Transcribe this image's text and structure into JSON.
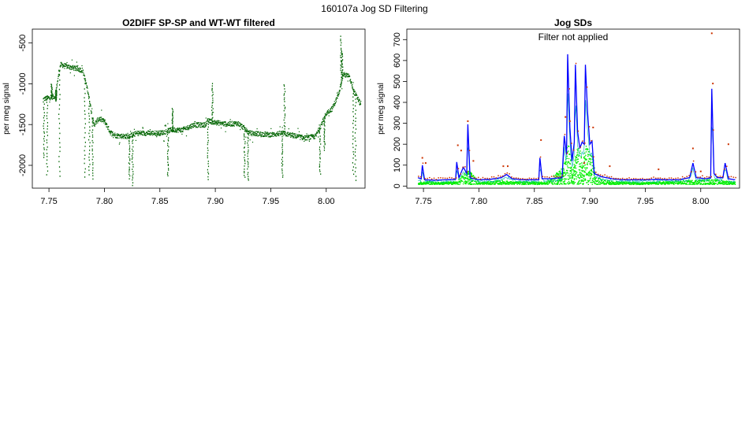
{
  "page": {
    "title": "160107a   Jog SD Filtering"
  },
  "colors": {
    "left_series": "#006400",
    "right_blue": "#0000ff",
    "right_green": "#00ee00",
    "right_red": "#cc3300",
    "right_cyan": "#00b0b0"
  },
  "chart_data": [
    {
      "type": "scatter",
      "title": "O2DIFF SP-SP and WT-WT filtered",
      "xlabel": "",
      "ylabel": "per meg signal",
      "xlim": [
        7.735,
        8.035
      ],
      "ylim": [
        -2280,
        -330
      ],
      "x_ticks": [
        7.75,
        7.8,
        7.85,
        7.9,
        7.95,
        8.0
      ],
      "x_tick_labels": [
        "7.75",
        "7.80",
        "7.85",
        "7.90",
        "7.95",
        "8.00"
      ],
      "y_ticks": [
        -2000,
        -1500,
        -1000,
        -500
      ],
      "y_tick_labels": [
        "-2000",
        "-1500",
        "-1000",
        "-500"
      ],
      "grid": false,
      "baseline": [
        [
          7.745,
          -1180
        ],
        [
          7.755,
          -1150
        ],
        [
          7.76,
          -760
        ],
        [
          7.78,
          -830
        ],
        [
          7.785,
          -1100
        ],
        [
          7.79,
          -1500
        ],
        [
          7.795,
          -1420
        ],
        [
          7.8,
          -1460
        ],
        [
          7.805,
          -1590
        ],
        [
          7.81,
          -1630
        ],
        [
          7.82,
          -1640
        ],
        [
          7.825,
          -1620
        ],
        [
          7.83,
          -1600
        ],
        [
          7.85,
          -1600
        ],
        [
          7.855,
          -1580
        ],
        [
          7.86,
          -1560
        ],
        [
          7.87,
          -1560
        ],
        [
          7.88,
          -1500
        ],
        [
          7.89,
          -1500
        ],
        [
          7.893,
          -1450
        ],
        [
          7.9,
          -1470
        ],
        [
          7.91,
          -1490
        ],
        [
          7.92,
          -1480
        ],
        [
          7.925,
          -1530
        ],
        [
          7.93,
          -1600
        ],
        [
          7.95,
          -1620
        ],
        [
          7.96,
          -1600
        ],
        [
          7.97,
          -1630
        ],
        [
          7.98,
          -1660
        ],
        [
          7.99,
          -1640
        ],
        [
          7.995,
          -1500
        ],
        [
          8.0,
          -1350
        ],
        [
          8.005,
          -1300
        ],
        [
          8.01,
          -1150
        ],
        [
          8.015,
          -880
        ],
        [
          8.02,
          -900
        ],
        [
          8.025,
          -1100
        ],
        [
          8.03,
          -1230
        ]
      ],
      "excursions": [
        [
          7.745,
          -1900
        ],
        [
          7.748,
          -2100
        ],
        [
          7.752,
          -1000
        ],
        [
          7.756,
          -1200
        ],
        [
          7.759,
          -2120
        ],
        [
          7.782,
          -2140
        ],
        [
          7.786,
          -2100
        ],
        [
          7.789,
          -2160
        ],
        [
          7.822,
          -2150
        ],
        [
          7.825,
          -2230
        ],
        [
          7.857,
          -2130
        ],
        [
          7.861,
          -1300
        ],
        [
          7.893,
          -2170
        ],
        [
          7.897,
          -1000
        ],
        [
          7.926,
          -2140
        ],
        [
          7.929,
          -2180
        ],
        [
          7.96,
          -2130
        ],
        [
          7.962,
          -1000
        ],
        [
          7.994,
          -2100
        ],
        [
          7.998,
          -1800
        ],
        [
          8.013,
          -420
        ],
        [
          8.014,
          -600
        ],
        [
          8.024,
          -2100
        ],
        [
          8.026,
          -2170
        ]
      ]
    },
    {
      "type": "line",
      "title": "Jog SDs",
      "annotation": "Filter not applied",
      "xlabel": "",
      "ylabel": "per meg signal",
      "xlim": [
        7.735,
        8.035
      ],
      "ylim": [
        -10,
        750
      ],
      "x_ticks": [
        7.75,
        7.8,
        7.85,
        7.9,
        7.95,
        8.0
      ],
      "x_tick_labels": [
        "7.75",
        "7.80",
        "7.85",
        "7.90",
        "7.95",
        "8.00"
      ],
      "y_ticks": [
        0,
        100,
        200,
        300,
        400,
        500,
        600,
        700
      ],
      "y_tick_labels": [
        "0",
        "100",
        "200",
        "300",
        "400",
        "500",
        "600",
        "700"
      ],
      "grid": false,
      "series": [
        {
          "color": "blue",
          "points": [
            [
              7.745,
              40
            ],
            [
              7.748,
              35
            ],
            [
              7.749,
              100
            ],
            [
              7.751,
              30
            ],
            [
              7.76,
              28
            ],
            [
              7.77,
              30
            ],
            [
              7.779,
              32
            ],
            [
              7.78,
              115
            ],
            [
              7.782,
              40
            ],
            [
              7.786,
              90
            ],
            [
              7.789,
              60
            ],
            [
              7.79,
              295
            ],
            [
              7.792,
              40
            ],
            [
              7.8,
              30
            ],
            [
              7.81,
              32
            ],
            [
              7.82,
              40
            ],
            [
              7.825,
              55
            ],
            [
              7.83,
              35
            ],
            [
              7.84,
              30
            ],
            [
              7.854,
              30
            ],
            [
              7.855,
              135
            ],
            [
              7.857,
              35
            ],
            [
              7.865,
              35
            ],
            [
              7.875,
              40
            ],
            [
              7.877,
              240
            ],
            [
              7.879,
              150
            ],
            [
              7.88,
              630
            ],
            [
              7.882,
              280
            ],
            [
              7.884,
              120
            ],
            [
              7.886,
              210
            ],
            [
              7.887,
              580
            ],
            [
              7.889,
              260
            ],
            [
              7.891,
              180
            ],
            [
              7.893,
              210
            ],
            [
              7.895,
              200
            ],
            [
              7.896,
              580
            ],
            [
              7.898,
              350
            ],
            [
              7.9,
              200
            ],
            [
              7.902,
              215
            ],
            [
              7.904,
              60
            ],
            [
              7.91,
              45
            ],
            [
              7.92,
              35
            ],
            [
              7.93,
              30
            ],
            [
              7.94,
              30
            ],
            [
              7.95,
              30
            ],
            [
              7.96,
              32
            ],
            [
              7.97,
              30
            ],
            [
              7.98,
              30
            ],
            [
              7.99,
              40
            ],
            [
              7.993,
              110
            ],
            [
              7.996,
              40
            ],
            [
              8.005,
              35
            ],
            [
              8.009,
              40
            ],
            [
              8.01,
              465
            ],
            [
              8.012,
              60
            ],
            [
              8.015,
              40
            ],
            [
              8.02,
              40
            ],
            [
              8.022,
              110
            ],
            [
              8.025,
              35
            ],
            [
              8.031,
              30
            ]
          ]
        },
        {
          "color": "green",
          "points": [
            [
              7.745,
              15
            ],
            [
              7.755,
              22
            ],
            [
              7.76,
              15
            ],
            [
              7.78,
              20
            ],
            [
              7.79,
              80
            ],
            [
              7.8,
              15
            ],
            [
              7.82,
              25
            ],
            [
              7.83,
              18
            ],
            [
              7.85,
              20
            ],
            [
              7.86,
              15
            ],
            [
              7.876,
              90
            ],
            [
              7.88,
              220
            ],
            [
              7.884,
              60
            ],
            [
              7.887,
              160
            ],
            [
              7.89,
              200
            ],
            [
              7.893,
              100
            ],
            [
              7.896,
              190
            ],
            [
              7.9,
              160
            ],
            [
              7.903,
              120
            ],
            [
              7.905,
              40
            ],
            [
              7.92,
              20
            ],
            [
              7.95,
              15
            ],
            [
              7.99,
              25
            ],
            [
              8.01,
              30
            ],
            [
              8.031,
              18
            ]
          ]
        },
        {
          "color": "red",
          "points": [
            [
              7.749,
              135
            ],
            [
              7.752,
              110
            ],
            [
              7.781,
              195
            ],
            [
              7.784,
              170
            ],
            [
              7.79,
              310
            ],
            [
              7.795,
              120
            ],
            [
              7.822,
              95
            ],
            [
              7.826,
              95
            ],
            [
              7.856,
              220
            ],
            [
              7.878,
              330
            ],
            [
              7.882,
              310
            ],
            [
              7.895,
              110
            ],
            [
              7.903,
              280
            ],
            [
              7.918,
              95
            ],
            [
              7.962,
              80
            ],
            [
              7.993,
              180
            ],
            [
              8.0,
              70
            ],
            [
              8.01,
              730
            ],
            [
              8.011,
              490
            ],
            [
              8.025,
              200
            ]
          ]
        }
      ]
    }
  ]
}
